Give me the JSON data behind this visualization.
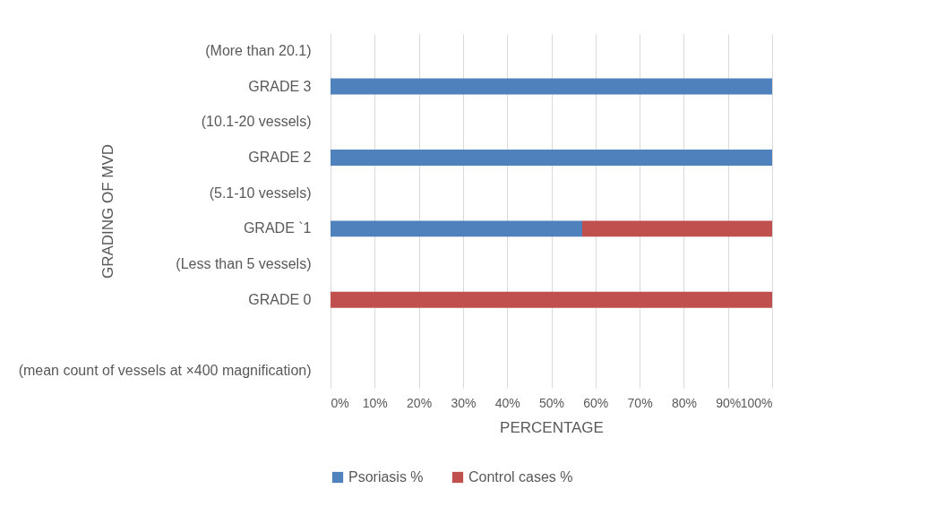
{
  "chart_data": {
    "type": "bar",
    "orientation": "horizontal",
    "stacked": true,
    "xlabel": "PERCENTAGE",
    "ylabel": "GRADING OF MVD",
    "categories": [
      "(More than 20.1)",
      "GRADE 3",
      "(10.1-20 vessels)",
      "GRADE 2",
      "(5.1-10 vessels)",
      "GRADE `1",
      "(Less than 5 vessels)",
      "GRADE 0",
      null,
      "(mean count of vessels at ×400 magnification)"
    ],
    "series": [
      {
        "name": "Psoriasis %",
        "color": "#4f81bd",
        "values": [
          null,
          100,
          null,
          100,
          null,
          57,
          null,
          null,
          null,
          null
        ]
      },
      {
        "name": "Control cases %",
        "color": "#c0504d",
        "values": [
          null,
          null,
          null,
          null,
          null,
          43,
          null,
          100,
          null,
          null
        ]
      }
    ],
    "xlim": [
      0,
      100
    ],
    "xticks": [
      {
        "value": 0,
        "label": "0%"
      },
      {
        "value": 10,
        "label": "10%"
      },
      {
        "value": 20,
        "label": "20%"
      },
      {
        "value": 30,
        "label": "30%"
      },
      {
        "value": 40,
        "label": "40%"
      },
      {
        "value": 50,
        "label": "50%"
      },
      {
        "value": 60,
        "label": "60%"
      },
      {
        "value": 70,
        "label": "70%"
      },
      {
        "value": 80,
        "label": "80%"
      },
      {
        "value": 90,
        "label": "90%"
      },
      {
        "value": 100,
        "label": "100%"
      }
    ],
    "grid": "x",
    "legend": "bottom"
  }
}
